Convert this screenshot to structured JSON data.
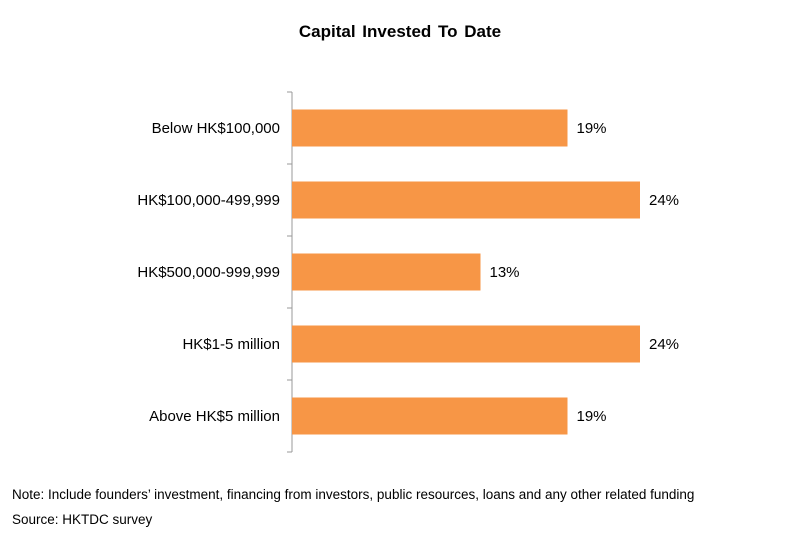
{
  "chart_data": {
    "type": "bar",
    "orientation": "horizontal",
    "title": "Capital Invested To Date",
    "categories": [
      "Below HK$100,000",
      "HK$100,000-499,999",
      "HK$500,000-999,999",
      "HK$1-5 million",
      "Above HK$5 million"
    ],
    "values": [
      19,
      24,
      13,
      24,
      19
    ],
    "value_labels": [
      "19%",
      "24%",
      "13%",
      "24%",
      "19%"
    ],
    "xlim": [
      0,
      30
    ],
    "grid": false,
    "legend": "none",
    "bar_color": "#F79646"
  },
  "footer": {
    "note": "Note: Include founders’ investment, financing from investors, public resources, loans and any other related funding",
    "source": "Source: HKTDC survey"
  }
}
